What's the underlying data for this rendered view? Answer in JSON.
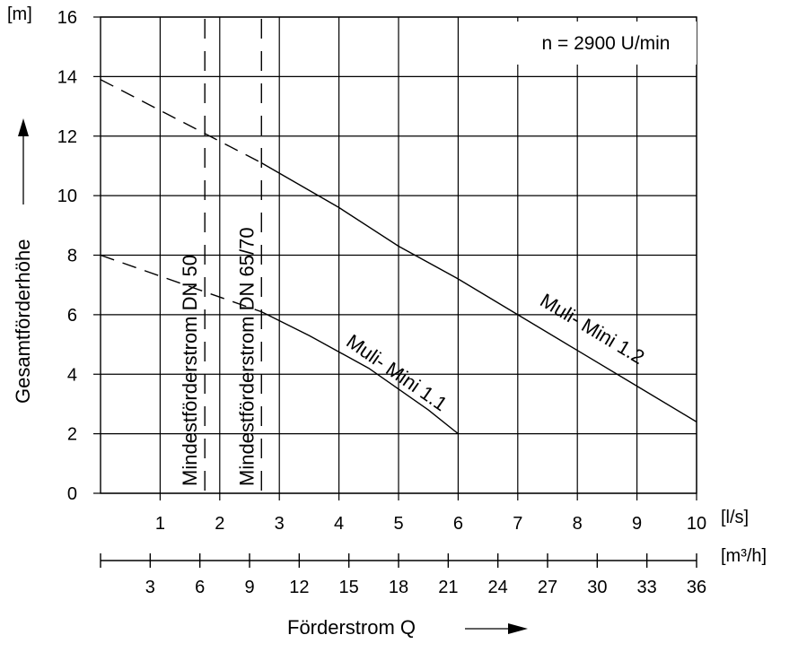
{
  "chart_data": {
    "type": "line",
    "ylabel": "Gesamtförderhöhe",
    "yunit": "[m]",
    "xlabel": "Förderstrom  Q",
    "x_unit_primary": "[l/s]",
    "x_unit_secondary": "[m³/h]",
    "annotation": "n = 2900 U/min",
    "xlim": [
      0,
      10
    ],
    "ylim": [
      0,
      16
    ],
    "x_ticks": [
      "1",
      "2",
      "3",
      "4",
      "5",
      "6",
      "7",
      "8",
      "9",
      "10"
    ],
    "x2_ticks": [
      "3",
      "6",
      "9",
      "12",
      "15",
      "18",
      "21",
      "24",
      "27",
      "30",
      "33",
      "36"
    ],
    "y_ticks": [
      "0",
      "2",
      "4",
      "6",
      "8",
      "10",
      "12",
      "14",
      "16"
    ],
    "min_flow_lines": [
      {
        "name": "Mindestförderstrom DN 50",
        "x": 1.75
      },
      {
        "name": "Mindestförderstrom DN 65/70",
        "x": 2.7
      }
    ],
    "series": [
      {
        "name": "Muli- Mini 1.1",
        "dashed": [
          [
            0,
            8
          ],
          [
            2.7,
            6.1
          ]
        ],
        "solid": [
          [
            2.7,
            6.1
          ],
          [
            3.5,
            5.3
          ],
          [
            4.5,
            4.2
          ],
          [
            5.5,
            2.8
          ],
          [
            6.0,
            2.0
          ]
        ]
      },
      {
        "name": "Muli- Mini 1.2",
        "dashed": [
          [
            0,
            13.9
          ],
          [
            2.7,
            11.1
          ]
        ],
        "solid": [
          [
            2.7,
            11.1
          ],
          [
            4,
            9.6
          ],
          [
            5,
            8.3
          ],
          [
            6,
            7.2
          ],
          [
            7,
            6.0
          ],
          [
            8,
            4.8
          ],
          [
            9,
            3.6
          ],
          [
            10,
            2.4
          ]
        ]
      }
    ]
  }
}
